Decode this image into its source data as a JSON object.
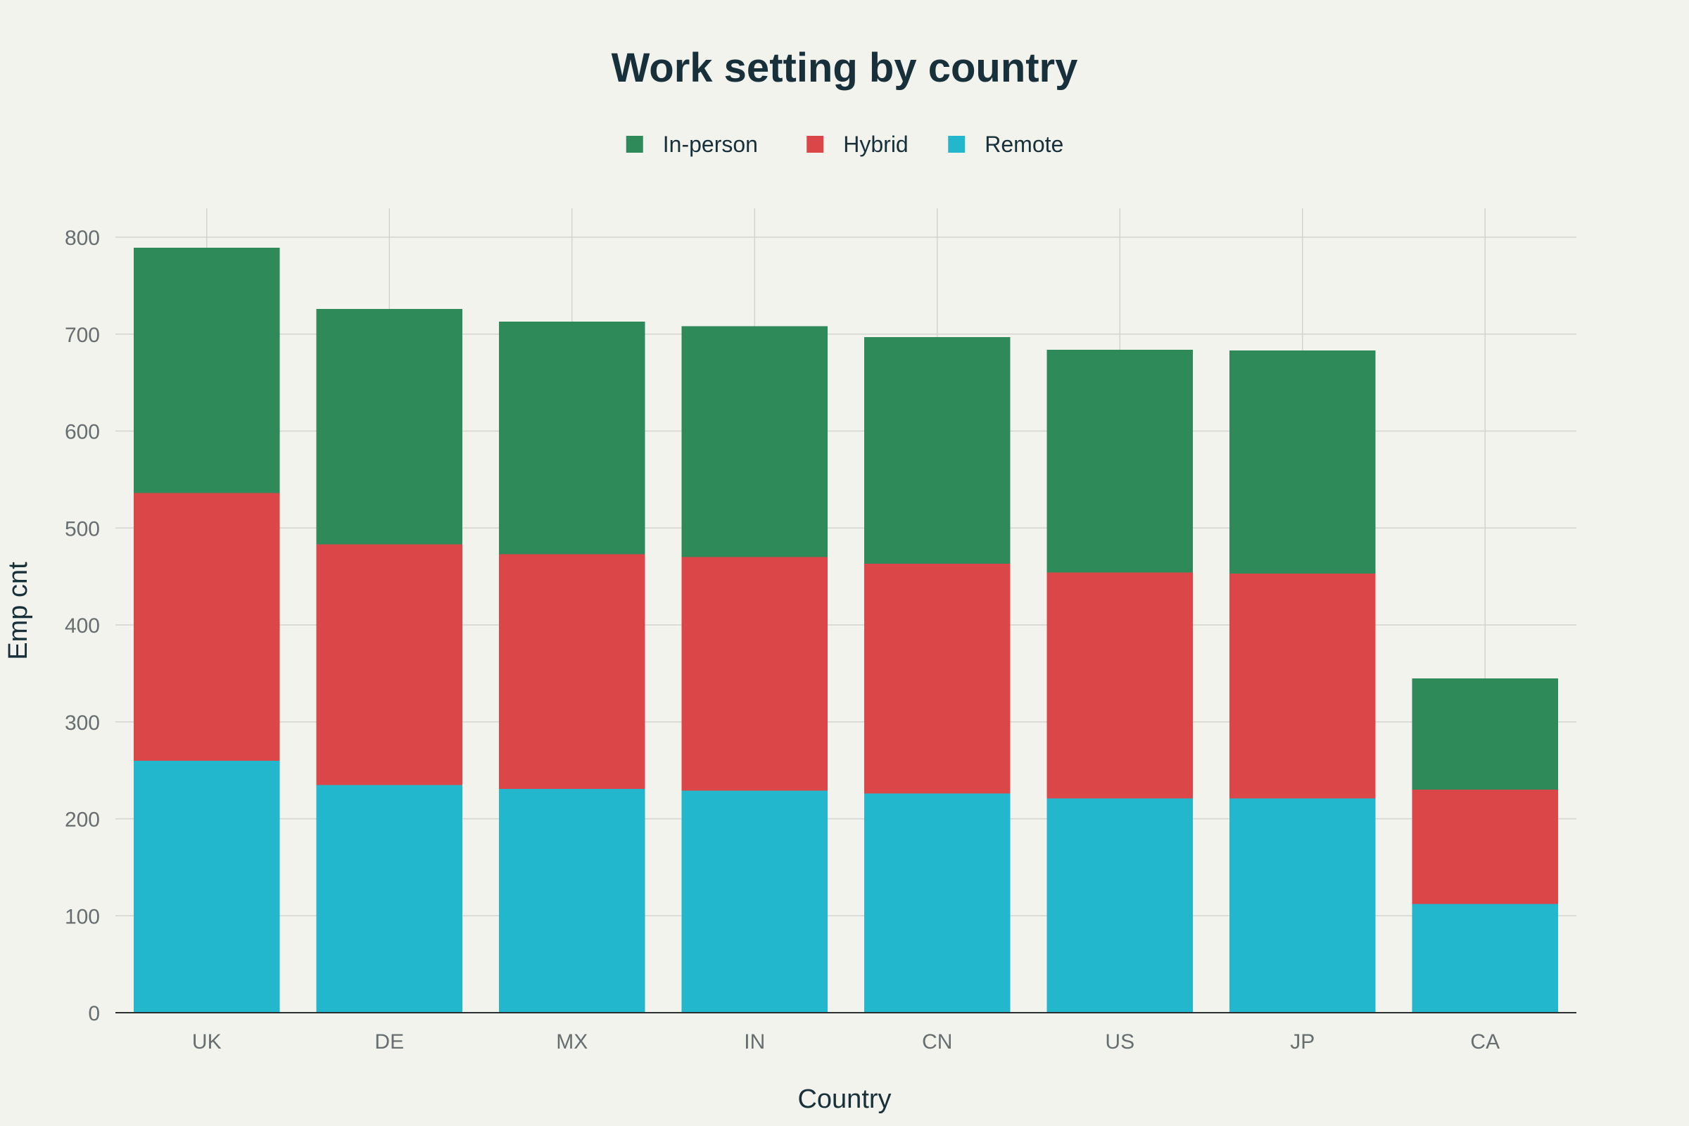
{
  "chart_data": {
    "type": "bar",
    "stacked": true,
    "title": "Work setting by country",
    "xlabel": "Country",
    "ylabel": "Emp cnt",
    "categories": [
      "UK",
      "DE",
      "MX",
      "IN",
      "CN",
      "US",
      "JP",
      "CA"
    ],
    "series": [
      {
        "name": "Remote",
        "color": "#22b7cc",
        "values": [
          260,
          235,
          231,
          229,
          226,
          221,
          221,
          112
        ]
      },
      {
        "name": "Hybrid",
        "color": "#db4748",
        "values": [
          276,
          248,
          242,
          241,
          237,
          233,
          232,
          118
        ]
      },
      {
        "name": "In-person",
        "color": "#2f8a5a",
        "values": [
          253,
          243,
          240,
          238,
          234,
          230,
          230,
          115
        ]
      }
    ],
    "legend_order": [
      "In-person",
      "Hybrid",
      "Remote"
    ],
    "legend_position": "top-center",
    "ylim": [
      0,
      830
    ],
    "yticks": [
      0,
      100,
      200,
      300,
      400,
      500,
      600,
      700,
      800
    ],
    "grid": true
  }
}
